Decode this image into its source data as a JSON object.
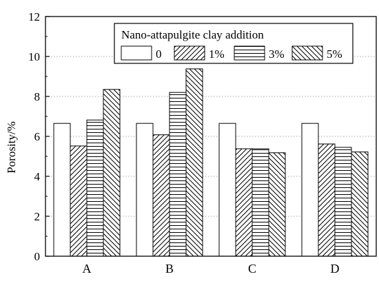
{
  "chart_data": {
    "type": "bar",
    "categories": [
      "A",
      "B",
      "C",
      "D"
    ],
    "ylabel": "Porosity/%",
    "xlabel": "",
    "ylim": [
      0,
      12
    ],
    "yticks": [
      0,
      2,
      4,
      6,
      8,
      10,
      12
    ],
    "grid": "horizontal dotted at major ticks",
    "legend": {
      "title": "Nano-attapulgite clay addition",
      "placement": "top-right"
    },
    "series": [
      {
        "name": "0",
        "pattern": "blank",
        "values": [
          6.65,
          6.65,
          6.65,
          6.65
        ]
      },
      {
        "name": "1%",
        "pattern": "forward-hatch",
        "values": [
          5.52,
          6.08,
          5.38,
          5.62
        ]
      },
      {
        "name": "3%",
        "pattern": "horizontal",
        "values": [
          6.82,
          8.2,
          5.38,
          5.45
        ]
      },
      {
        "name": "5%",
        "pattern": "back-hatch",
        "values": [
          8.35,
          9.38,
          5.18,
          5.22
        ]
      }
    ]
  }
}
